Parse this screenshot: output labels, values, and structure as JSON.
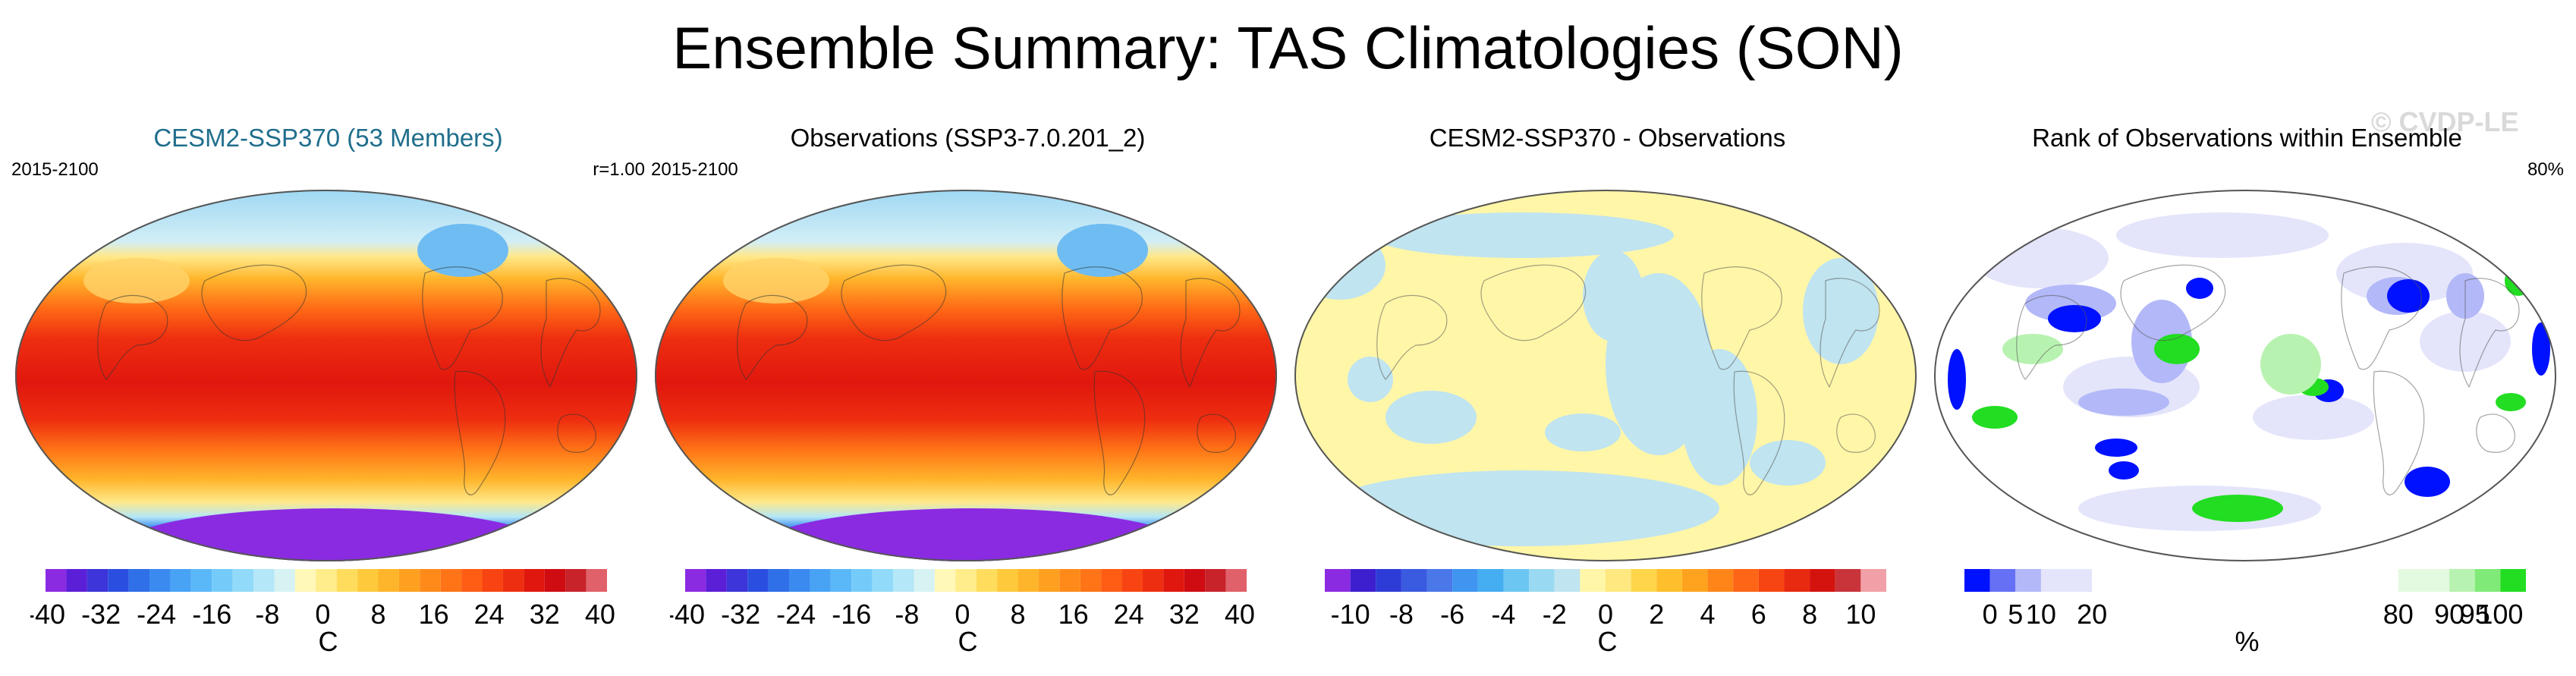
{
  "title": "Ensemble Summary: TAS Climatologies (SON)",
  "watermark": "© CVDP-LE",
  "panels": [
    {
      "title": "CESM2-SSP370 (53 Members)",
      "title_color": "#1f6e8c",
      "left_label": "2015-2100",
      "right_label": "r=1.00",
      "map_style": "temperature",
      "colorbar": {
        "unit": "C",
        "levels": [
          -40,
          -37,
          -34,
          -31,
          -28,
          -25,
          -22,
          -19,
          -16,
          -13,
          -10,
          -7,
          -4,
          -1,
          2,
          5,
          8,
          11,
          14,
          17,
          20,
          23,
          26,
          29,
          32,
          35,
          38,
          41
        ],
        "tick_labels": [
          "-40",
          "-32",
          "-24",
          "-16",
          "-8",
          "0",
          "8",
          "16",
          "24",
          "32",
          "40"
        ],
        "colors": [
          "#8a2be2",
          "#5a1fd6",
          "#3d34d9",
          "#2a4fe0",
          "#2f6fe8",
          "#3a8af0",
          "#48a3f5",
          "#5bb8f8",
          "#74cbfa",
          "#92daf9",
          "#b4e7f7",
          "#d7f2f3",
          "#fff8b8",
          "#ffec8a",
          "#ffdc5c",
          "#ffc93c",
          "#ffb52b",
          "#ffa020",
          "#ff8a1a",
          "#ff7417",
          "#ff5c14",
          "#f84412",
          "#ee2e10",
          "#e0170e",
          "#cf0c12",
          "#c8222a",
          "#e0616a",
          "#f7aab0"
        ]
      }
    },
    {
      "title": "Observations (SSP3-7.0.201_2)",
      "title_color": "#000000",
      "left_label": "2015-2100",
      "right_label": "",
      "map_style": "temperature",
      "colorbar": {
        "unit": "C",
        "levels": [
          -40,
          -37,
          -34,
          -31,
          -28,
          -25,
          -22,
          -19,
          -16,
          -13,
          -10,
          -7,
          -4,
          -1,
          2,
          5,
          8,
          11,
          14,
          17,
          20,
          23,
          26,
          29,
          32,
          35,
          38,
          41
        ],
        "tick_labels": [
          "-40",
          "-32",
          "-24",
          "-16",
          "-8",
          "0",
          "8",
          "16",
          "24",
          "32",
          "40"
        ],
        "colors": [
          "#8a2be2",
          "#5a1fd6",
          "#3d34d9",
          "#2a4fe0",
          "#2f6fe8",
          "#3a8af0",
          "#48a3f5",
          "#5bb8f8",
          "#74cbfa",
          "#92daf9",
          "#b4e7f7",
          "#d7f2f3",
          "#fff8b8",
          "#ffec8a",
          "#ffdc5c",
          "#ffc93c",
          "#ffb52b",
          "#ffa020",
          "#ff8a1a",
          "#ff7417",
          "#ff5c14",
          "#f84412",
          "#ee2e10",
          "#e0170e",
          "#cf0c12",
          "#c8222a",
          "#e0616a",
          "#f7aab0"
        ]
      }
    },
    {
      "title": "CESM2-SSP370 - Observations",
      "title_color": "#000000",
      "left_label": "",
      "right_label": "",
      "map_style": "difference",
      "colorbar": {
        "unit": "C",
        "levels": [
          -11,
          -10,
          -9,
          -8,
          -7,
          -6,
          -5,
          -4,
          -3,
          -2,
          -1,
          0,
          1,
          2,
          3,
          4,
          5,
          6,
          7,
          8,
          9,
          10,
          11
        ],
        "tick_labels": [
          "-10",
          "-8",
          "-6",
          "-4",
          "-2",
          "0",
          "2",
          "4",
          "6",
          "8",
          "10"
        ],
        "colors": [
          "#8a2be2",
          "#3d1fd0",
          "#2d3cd6",
          "#3a5ae0",
          "#4a78e8",
          "#3f95ef",
          "#45aef2",
          "#6cc6f2",
          "#9ad9f2",
          "#c0e4f0",
          "#fff6a8",
          "#ffe880",
          "#ffd54a",
          "#ffbe2c",
          "#ffa31f",
          "#ff8519",
          "#ff6516",
          "#f64512",
          "#e82a10",
          "#d4130e",
          "#c8343a",
          "#f0a0a6"
        ]
      }
    },
    {
      "title": "Rank of Observations within Ensemble",
      "title_color": "#000000",
      "left_label": "",
      "right_label": "80%",
      "map_style": "rank",
      "colorbar": {
        "unit": "%",
        "levels": [
          -5,
          0,
          5,
          10,
          20,
          80,
          90,
          95,
          100,
          105
        ],
        "tick_labels": [
          "0",
          "5",
          "10",
          "20",
          "80",
          "90",
          "95",
          "100"
        ],
        "tick_values": [
          0,
          5,
          10,
          20,
          80,
          90,
          95,
          100
        ],
        "colors": [
          "#0011ff",
          "#6670f5",
          "#b3b8f8",
          "#e4e5fb",
          "#ffffff",
          "#e4fae0",
          "#b8f2b0",
          "#80ea78",
          "#22dd22"
        ]
      }
    }
  ]
}
